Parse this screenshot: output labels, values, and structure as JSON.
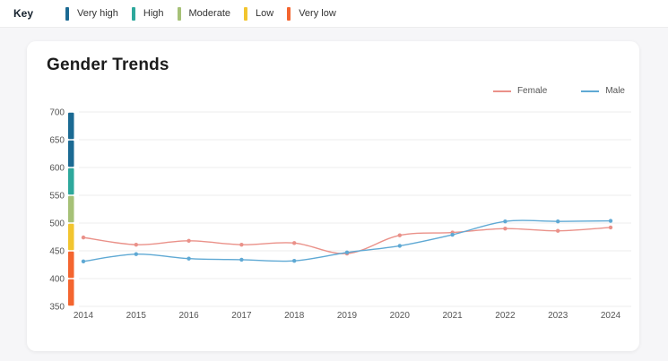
{
  "key_bar": {
    "label": "Key",
    "items": [
      {
        "label": "Very high",
        "color": "#1b6a93"
      },
      {
        "label": "High",
        "color": "#2ea89c"
      },
      {
        "label": "Moderate",
        "color": "#a6c177"
      },
      {
        "label": "Low",
        "color": "#f2c52f"
      },
      {
        "label": "Very low",
        "color": "#f4652f"
      }
    ]
  },
  "card": {
    "title": "Gender Trends"
  },
  "chart_data": {
    "type": "line",
    "title": "Gender Trends",
    "x": [
      "2014",
      "2015",
      "2016",
      "2017",
      "2018",
      "2019",
      "2020",
      "2021",
      "2022",
      "2023",
      "2024"
    ],
    "series": [
      {
        "name": "Female",
        "color": "#ea9189",
        "values": [
          474,
          461,
          468,
          461,
          464,
          445,
          478,
          483,
          490,
          486,
          492
        ]
      },
      {
        "name": "Male",
        "color": "#5fa9d4",
        "values": [
          431,
          444,
          436,
          434,
          432,
          447,
          459,
          479,
          503,
          503,
          504
        ]
      }
    ],
    "ylim": [
      350,
      700
    ],
    "ytick_step": 50,
    "grid": true,
    "legend_position": "top-right",
    "band": [
      {
        "label": "Very low",
        "from": 350,
        "to": 450,
        "color": "#f4652f"
      },
      {
        "label": "Low",
        "from": 450,
        "to": 500,
        "color": "#f2c52f"
      },
      {
        "label": "Moderate",
        "from": 500,
        "to": 550,
        "color": "#a6c177"
      },
      {
        "label": "High",
        "from": 550,
        "to": 600,
        "color": "#2ea89c"
      },
      {
        "label": "Very high",
        "from": 600,
        "to": 700,
        "color": "#1b6a93"
      }
    ]
  }
}
